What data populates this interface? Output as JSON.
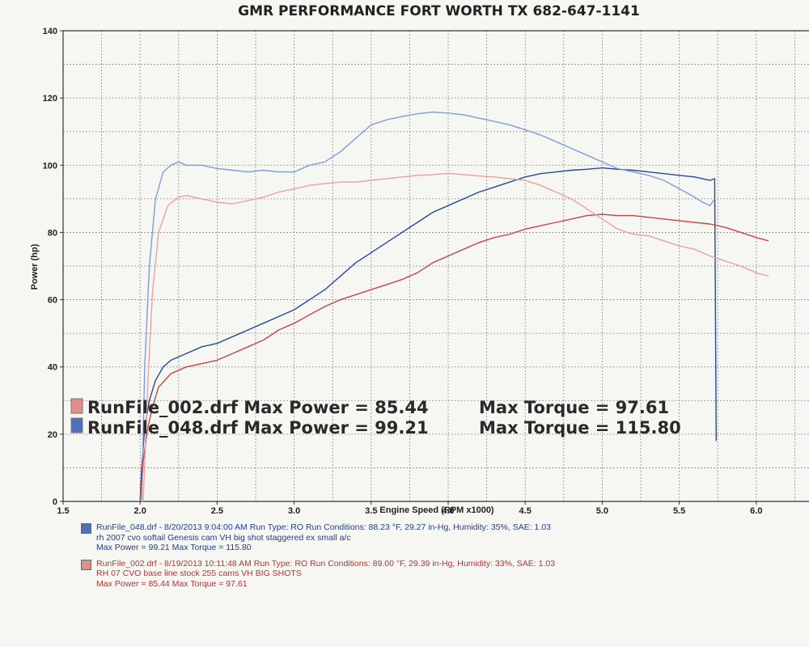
{
  "header": {
    "title": "GMR PERFORMANCE FORT WORTH TX 682-647-1141"
  },
  "colors": {
    "run048_power": "#27499a",
    "run048_torque": "#7f9be0",
    "run002_power": "#c64646",
    "run002_torque": "#eea0a0",
    "grid": "#8c8c8c"
  },
  "overlay": {
    "rows": [
      {
        "swatch": "#e38d8d",
        "text_left": "RunFile_002.drf Max Power = 85.44",
        "text_right": "Max Torque = 97.61"
      },
      {
        "swatch": "#4f70bd",
        "text_left": "RunFile_048.drf Max Power = 99.21",
        "text_right": "Max Torque = 115.80"
      }
    ]
  },
  "legend": [
    {
      "color": "#1f3f8e",
      "swatch": "#4f70bd",
      "lines": [
        "RunFile_048.drf - 8/20/2013 9:04:00 AM  Run Type: RO  Run Conditions: 88.23 °F, 29.27 in-Hg,  Humidity:  35%, SAE: 1.03",
        "rh 2007 cvo softail Genesis cam VH big shot staggered ex small a/c",
        "Max Power = 99.21  Max Torque = 115.80"
      ]
    },
    {
      "color": "#b03636",
      "swatch": "#e38d8d",
      "lines": [
        "RunFile_002.drf - 8/19/2013 10:11:48 AM  Run Type: RO  Run Conditions: 89.00 °F, 29.39 in-Hg,  Humidity:  33%, SAE: 1.03",
        "RH 07 CVO base line  stock 255 cams VH BIG SHOTS",
        "Max Power = 85.44  Max Torque = 97.61"
      ]
    }
  ],
  "chart_data": {
    "type": "line",
    "title": "GMR PERFORMANCE FORT WORTH TX 682-647-1141",
    "xlabel": "Engine Speed (RPM x1000)",
    "ylabel": "Power (hp)",
    "xlim": [
      1.5,
      6.5
    ],
    "ylim": [
      0,
      140
    ],
    "xticks": [
      "1.5",
      "2.0",
      "2.5",
      "3.0",
      "3.5",
      "4.0",
      "4.5",
      "5.0",
      "5.5",
      "6.0"
    ],
    "yticks": [
      "0",
      "20",
      "40",
      "60",
      "80",
      "100",
      "120",
      "140"
    ],
    "grid": true,
    "series": [
      {
        "name": "RunFile_048.drf Max Power = 99.21",
        "color_key": "run048_power",
        "x": [
          2.0,
          2.01,
          2.03,
          2.06,
          2.1,
          2.15,
          2.2,
          2.3,
          2.4,
          2.5,
          2.6,
          2.7,
          2.8,
          2.9,
          3.0,
          3.1,
          3.2,
          3.3,
          3.4,
          3.5,
          3.6,
          3.7,
          3.8,
          3.9,
          4.0,
          4.1,
          4.2,
          4.3,
          4.4,
          4.5,
          4.6,
          4.7,
          4.8,
          4.9,
          5.0,
          5.1,
          5.2,
          5.3,
          5.4,
          5.5,
          5.6,
          5.65,
          5.7,
          5.73,
          5.74
        ],
        "y": [
          0,
          10,
          22,
          30,
          36,
          40,
          42,
          44,
          46,
          47,
          49,
          51,
          53,
          55,
          57,
          60,
          63,
          67,
          71,
          74,
          77,
          80,
          83,
          86,
          88,
          90,
          92,
          93.5,
          95,
          96.5,
          97.5,
          98,
          98.5,
          98.8,
          99.2,
          98.8,
          98.5,
          98,
          97.5,
          97,
          96.5,
          96,
          95.5,
          96,
          18
        ]
      },
      {
        "name": "RunFile_048.drf Max Torque = 115.80",
        "color_key": "run048_torque",
        "x": [
          2.01,
          2.03,
          2.06,
          2.1,
          2.15,
          2.2,
          2.25,
          2.3,
          2.4,
          2.5,
          2.6,
          2.7,
          2.8,
          2.9,
          3.0,
          3.1,
          3.2,
          3.3,
          3.4,
          3.5,
          3.6,
          3.7,
          3.8,
          3.9,
          4.0,
          4.1,
          4.2,
          4.3,
          4.4,
          4.5,
          4.6,
          4.7,
          4.8,
          4.9,
          5.0,
          5.1,
          5.2,
          5.3,
          5.4,
          5.5,
          5.6,
          5.65,
          5.7,
          5.73
        ],
        "y": [
          0,
          40,
          70,
          90,
          98,
          100,
          101,
          100,
          100,
          99,
          98.5,
          98,
          98.5,
          98,
          98,
          100,
          101,
          104,
          108,
          112,
          113.5,
          114.5,
          115.3,
          115.8,
          115.5,
          115,
          114,
          113,
          112,
          110.5,
          109,
          107,
          105,
          103,
          101,
          99,
          98,
          97,
          95.5,
          93,
          90.5,
          89,
          88,
          90
        ]
      },
      {
        "name": "RunFile_002.drf Max Power = 85.44",
        "color_key": "run002_power",
        "x": [
          2.0,
          2.02,
          2.05,
          2.08,
          2.12,
          2.2,
          2.3,
          2.4,
          2.5,
          2.6,
          2.7,
          2.8,
          2.9,
          3.0,
          3.1,
          3.2,
          3.3,
          3.4,
          3.5,
          3.6,
          3.7,
          3.8,
          3.9,
          4.0,
          4.1,
          4.2,
          4.3,
          4.4,
          4.5,
          4.6,
          4.7,
          4.8,
          4.9,
          5.0,
          5.1,
          5.2,
          5.3,
          5.4,
          5.5,
          5.6,
          5.7,
          5.8,
          5.9,
          6.0,
          6.08
        ],
        "y": [
          0,
          12,
          22,
          28,
          34,
          38,
          40,
          41,
          42,
          44,
          46,
          48,
          51,
          53,
          55.5,
          58,
          60,
          61.5,
          63,
          64.5,
          66,
          68,
          71,
          73,
          75,
          77,
          78.5,
          79.5,
          81,
          82,
          83,
          84,
          85,
          85.4,
          85,
          85,
          84.5,
          84,
          83.5,
          83,
          82.5,
          81.5,
          80,
          78.5,
          77.5
        ]
      },
      {
        "name": "RunFile_002.drf Max Torque = 97.61",
        "color_key": "run002_torque",
        "x": [
          2.02,
          2.05,
          2.08,
          2.12,
          2.18,
          2.25,
          2.3,
          2.4,
          2.5,
          2.6,
          2.7,
          2.8,
          2.9,
          3.0,
          3.1,
          3.2,
          3.3,
          3.4,
          3.5,
          3.6,
          3.7,
          3.8,
          3.9,
          4.0,
          4.1,
          4.2,
          4.3,
          4.4,
          4.5,
          4.6,
          4.7,
          4.8,
          4.9,
          5.0,
          5.1,
          5.2,
          5.3,
          5.4,
          5.5,
          5.6,
          5.7,
          5.8,
          5.9,
          6.0,
          6.08
        ],
        "y": [
          0,
          35,
          62,
          80,
          88,
          90.5,
          91,
          90,
          89,
          88.5,
          89.5,
          90.5,
          92,
          93,
          94,
          94.5,
          95,
          95,
          95.5,
          96,
          96.5,
          97,
          97.2,
          97.6,
          97.2,
          96.8,
          96.5,
          96,
          95.5,
          94,
          92,
          90,
          87,
          84,
          81,
          79.5,
          79,
          77.5,
          76,
          75,
          73,
          71.5,
          70,
          68,
          67
        ]
      }
    ]
  }
}
